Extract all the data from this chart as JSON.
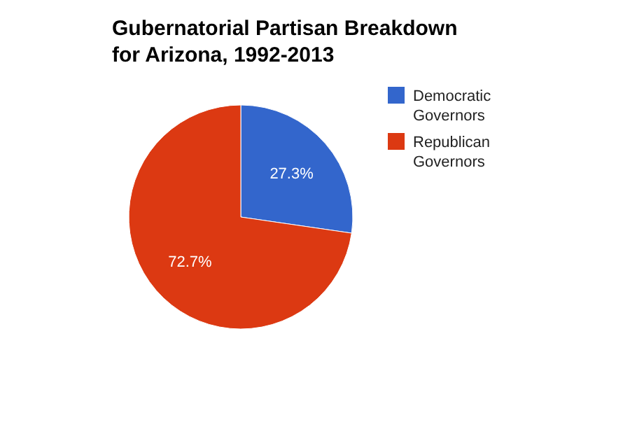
{
  "chart_data": {
    "type": "pie",
    "title": "Gubernatorial Partisan Breakdown for Arizona, 1992-2013",
    "categories": [
      "Democratic Governors",
      "Republican Governors"
    ],
    "values": [
      27.3,
      72.7
    ],
    "value_labels": [
      "27.3%",
      "72.7%"
    ],
    "colors": [
      "#3366cc",
      "#dc3912"
    ],
    "legend": "right"
  }
}
